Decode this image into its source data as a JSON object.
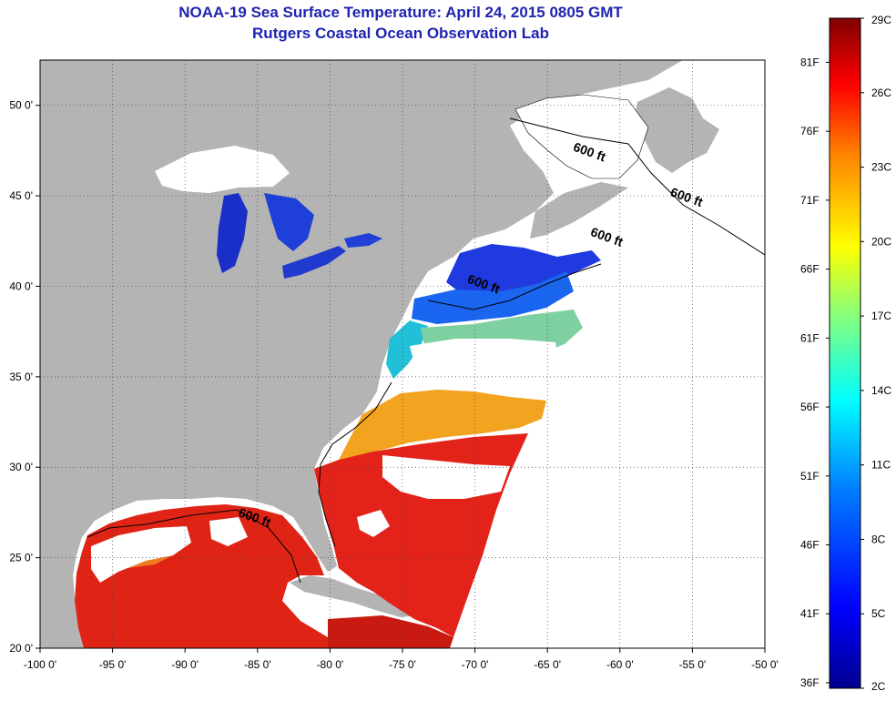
{
  "header": {
    "title": "NOAA-19 Sea Surface Temperature:  April 24, 2015 0805 GMT",
    "subtitle": "Rutgers Coastal Ocean Observation Lab"
  },
  "map": {
    "lon_range": [
      -100,
      -50
    ],
    "lat_range": [
      20,
      52.5
    ],
    "lon_ticks": [
      {
        "value": -100,
        "label": "-100 0'"
      },
      {
        "value": -95,
        "label": "-95 0'"
      },
      {
        "value": -90,
        "label": "-90 0'"
      },
      {
        "value": -85,
        "label": "-85 0'"
      },
      {
        "value": -80,
        "label": "-80 0'"
      },
      {
        "value": -75,
        "label": "-75 0'"
      },
      {
        "value": -70,
        "label": "-70 0'"
      },
      {
        "value": -65,
        "label": "-65 0'"
      },
      {
        "value": -60,
        "label": "-60 0'"
      },
      {
        "value": -55,
        "label": "-55 0'"
      },
      {
        "value": -50,
        "label": "-50 0'"
      }
    ],
    "lat_ticks": [
      {
        "value": 20,
        "label": "20 0'"
      },
      {
        "value": 25,
        "label": "25 0'"
      },
      {
        "value": 30,
        "label": "30 0'"
      },
      {
        "value": 35,
        "label": "35 0'"
      },
      {
        "value": 40,
        "label": "40 0'"
      },
      {
        "value": 45,
        "label": "45 0'"
      },
      {
        "value": 50,
        "label": "50 0'"
      }
    ],
    "grid": "dotted",
    "contour_labels": [
      {
        "text": "600 ft",
        "lon": -62.2,
        "lat": 47.2
      },
      {
        "text": "600 ft",
        "lon": -55.5,
        "lat": 44.7
      },
      {
        "text": "600 ft",
        "lon": -61.0,
        "lat": 42.5
      },
      {
        "text": "600 ft",
        "lon": -69.5,
        "lat": 39.9
      },
      {
        "text": "600 ft",
        "lon": -85.3,
        "lat": 27.0
      }
    ],
    "colors": {
      "land": "#b4b4b4",
      "no_data": "#ffffff",
      "contour": "#000000",
      "title": "#1f24b0"
    }
  },
  "colorbar": {
    "scale": "Sea Surface Temperature",
    "celsius_range": [
      2,
      29
    ],
    "celsius_labels": [
      {
        "value": 29,
        "label": "29C"
      },
      {
        "value": 26,
        "label": "26C"
      },
      {
        "value": 23,
        "label": "23C"
      },
      {
        "value": 20,
        "label": "20C"
      },
      {
        "value": 17,
        "label": "17C"
      },
      {
        "value": 14,
        "label": "14C"
      },
      {
        "value": 11,
        "label": "11C"
      },
      {
        "value": 8,
        "label": "8C"
      },
      {
        "value": 5,
        "label": "5C"
      },
      {
        "value": 2,
        "label": "2C"
      }
    ],
    "fahrenheit_labels": [
      {
        "value": 81,
        "label": "81F"
      },
      {
        "value": 76,
        "label": "76F"
      },
      {
        "value": 71,
        "label": "71F"
      },
      {
        "value": 66,
        "label": "66F"
      },
      {
        "value": 61,
        "label": "61F"
      },
      {
        "value": 56,
        "label": "56F"
      },
      {
        "value": 51,
        "label": "51F"
      },
      {
        "value": 46,
        "label": "46F"
      },
      {
        "value": 41,
        "label": "41F"
      },
      {
        "value": 36,
        "label": "36F"
      }
    ],
    "palette": [
      "#00008f",
      "#0000ff",
      "#0080ff",
      "#00ffff",
      "#80ff80",
      "#ffff00",
      "#ff8000",
      "#ff0000",
      "#800000"
    ]
  }
}
